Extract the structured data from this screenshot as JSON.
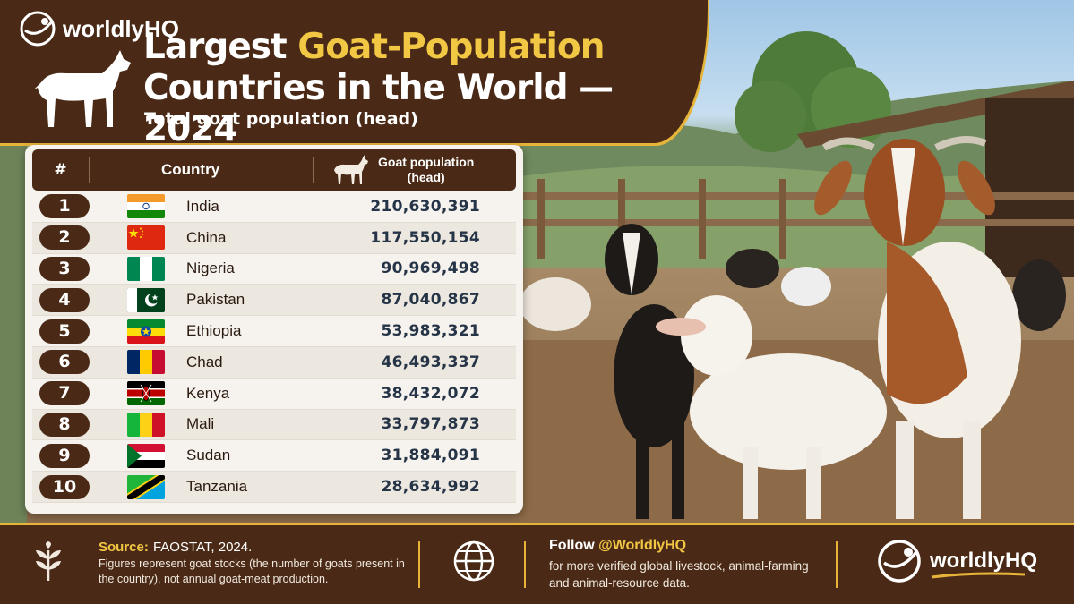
{
  "header": {
    "brand": "worldlyHQ",
    "title_line1_white": "Largest ",
    "title_line1_highlight": "Goat-Population",
    "title_line2": "Countries in the World — 2024",
    "subtitle": "Total goat population (head)"
  },
  "table": {
    "col_rank": "#",
    "col_country": "Country",
    "col_population": "Goat population",
    "col_population_unit": "(head)",
    "rows": [
      {
        "rank": "1",
        "country": "India",
        "value": "210,630,391",
        "flag": "india"
      },
      {
        "rank": "2",
        "country": "China",
        "value": "117,550,154",
        "flag": "china"
      },
      {
        "rank": "3",
        "country": "Nigeria",
        "value": "90,969,498",
        "flag": "nigeria"
      },
      {
        "rank": "4",
        "country": "Pakistan",
        "value": "87,040,867",
        "flag": "pakistan"
      },
      {
        "rank": "5",
        "country": "Ethiopia",
        "value": "53,983,321",
        "flag": "ethiopia"
      },
      {
        "rank": "6",
        "country": "Chad",
        "value": "46,493,337",
        "flag": "chad"
      },
      {
        "rank": "7",
        "country": "Kenya",
        "value": "38,432,072",
        "flag": "kenya"
      },
      {
        "rank": "8",
        "country": "Mali",
        "value": "33,797,873",
        "flag": "mali"
      },
      {
        "rank": "9",
        "country": "Sudan",
        "value": "31,884,091",
        "flag": "sudan"
      },
      {
        "rank": "10",
        "country": "Tanzania",
        "value": "28,634,992",
        "flag": "tanzania"
      }
    ]
  },
  "footer": {
    "source_label": "Source:",
    "source_value": "FAOSTAT, 2024.",
    "source_note": "Figures represent goat stocks (the number of goats present in the country), not annual goat-meat production.",
    "follow_prefix": "Follow ",
    "follow_handle": "@WorldlyHQ",
    "follow_note": "for more verified global livestock, animal-farming and animal-resource data.",
    "brand": "worldlyHQ"
  },
  "colors": {
    "brown": "#4a2a16",
    "gold": "#e7b43a",
    "highlight": "#f2c744"
  },
  "icons": [
    "globe-icon",
    "plant-icon",
    "goat-icon",
    "worldlyhq-logo"
  ]
}
